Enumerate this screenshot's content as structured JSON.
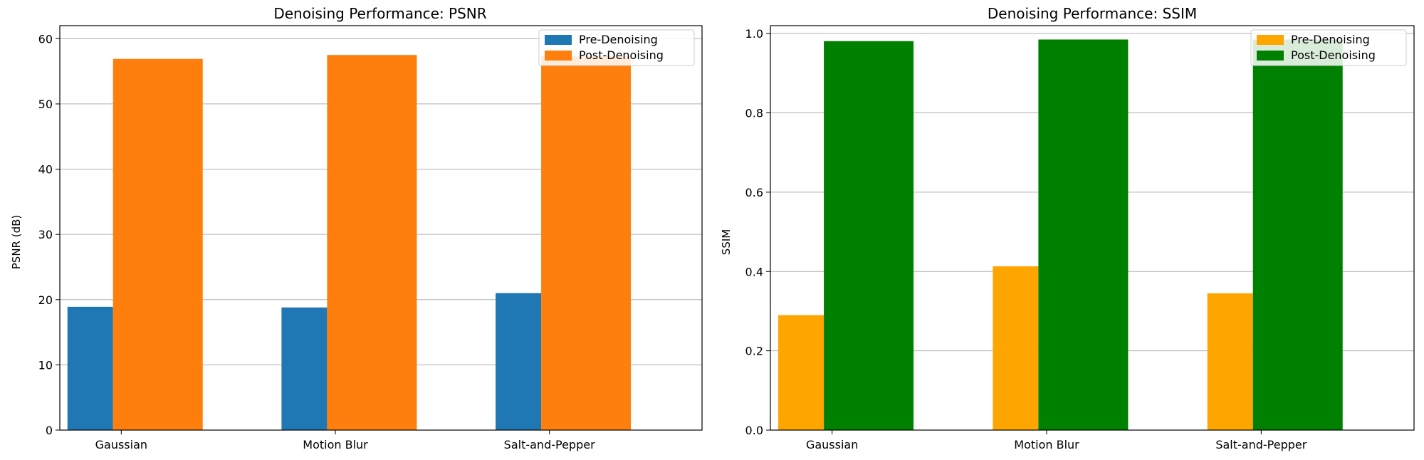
{
  "chart_data": [
    {
      "type": "bar",
      "title": "Denoising Performance: PSNR",
      "xlabel": "",
      "ylabel": "PSNR (dB)",
      "categories": [
        "Gaussian",
        "Motion Blur",
        "Salt-and-Pepper"
      ],
      "ylim": [
        0,
        62
      ],
      "yticks": [
        0,
        10,
        20,
        30,
        40,
        50,
        60
      ],
      "ytick_labels": [
        "0",
        "10",
        "20",
        "30",
        "40",
        "50",
        "60"
      ],
      "grid": "horizontal",
      "legend_position": "top-right",
      "series": [
        {
          "name": "Pre-Denoising",
          "color": "#1f77b4",
          "values": [
            18.9,
            18.8,
            21.0
          ]
        },
        {
          "name": "Post-Denoising",
          "color": "#ff7f0e",
          "values": [
            56.9,
            57.5,
            57.3
          ]
        }
      ]
    },
    {
      "type": "bar",
      "title": "Denoising Performance: SSIM",
      "xlabel": "",
      "ylabel": "SSIM",
      "categories": [
        "Gaussian",
        "Motion Blur",
        "Salt-and-Pepper"
      ],
      "ylim": [
        0,
        1.02
      ],
      "yticks": [
        0,
        0.2,
        0.4,
        0.6,
        0.8,
        1.0
      ],
      "ytick_labels": [
        "0.0",
        "0.2",
        "0.4",
        "0.6",
        "0.8",
        "1.0"
      ],
      "grid": "horizontal",
      "legend_position": "top-right",
      "series": [
        {
          "name": "Pre-Denoising",
          "color": "#ffa500",
          "values": [
            0.29,
            0.413,
            0.345
          ]
        },
        {
          "name": "Post-Denoising",
          "color": "#008000",
          "values": [
            0.981,
            0.985,
            0.985
          ]
        }
      ]
    }
  ]
}
